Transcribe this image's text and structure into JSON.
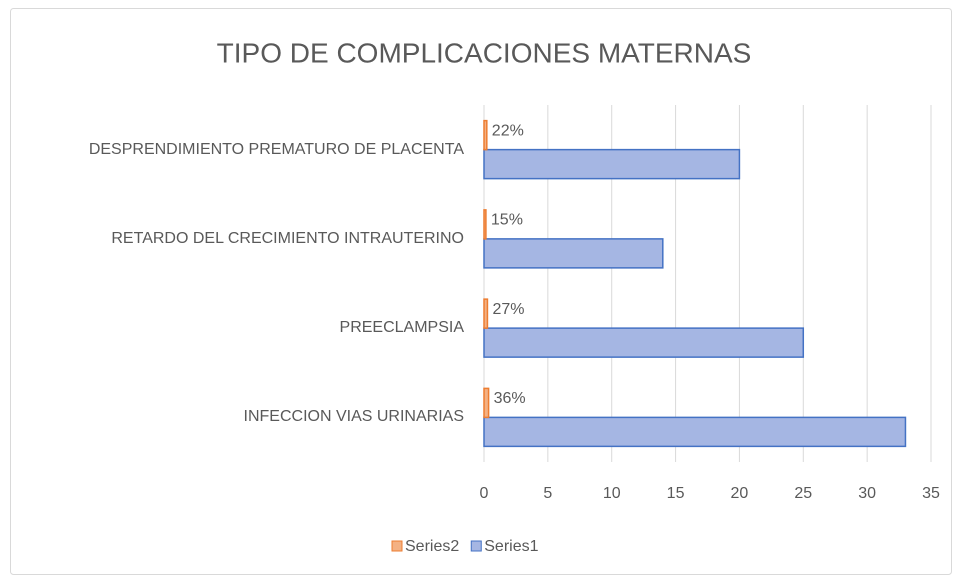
{
  "chart_data": {
    "type": "bar",
    "orientation": "horizontal",
    "title": "TIPO DE COMPLICACIONES  MATERNAS",
    "categories": [
      "INFECCION VIAS URINARIAS",
      "PREECLAMPSIA",
      "RETARDO DEL CRECIMIENTO INTRAUTERINO",
      "DESPRENDIMIENTO PREMATURO DE PLACENTA"
    ],
    "series": [
      {
        "name": "Series1",
        "color": "#4472c4",
        "values": [
          33,
          25,
          14,
          20
        ]
      },
      {
        "name": "Series2",
        "color": "#ed7d31",
        "values": [
          0.36,
          0.27,
          0.15,
          0.22
        ],
        "value_labels": [
          "36%",
          "27%",
          "15%",
          "22%"
        ]
      }
    ],
    "xlim": [
      0,
      35
    ],
    "xticks": [
      0,
      5,
      10,
      15,
      20,
      25,
      30,
      35
    ],
    "grid": true,
    "legend": "bottom"
  }
}
